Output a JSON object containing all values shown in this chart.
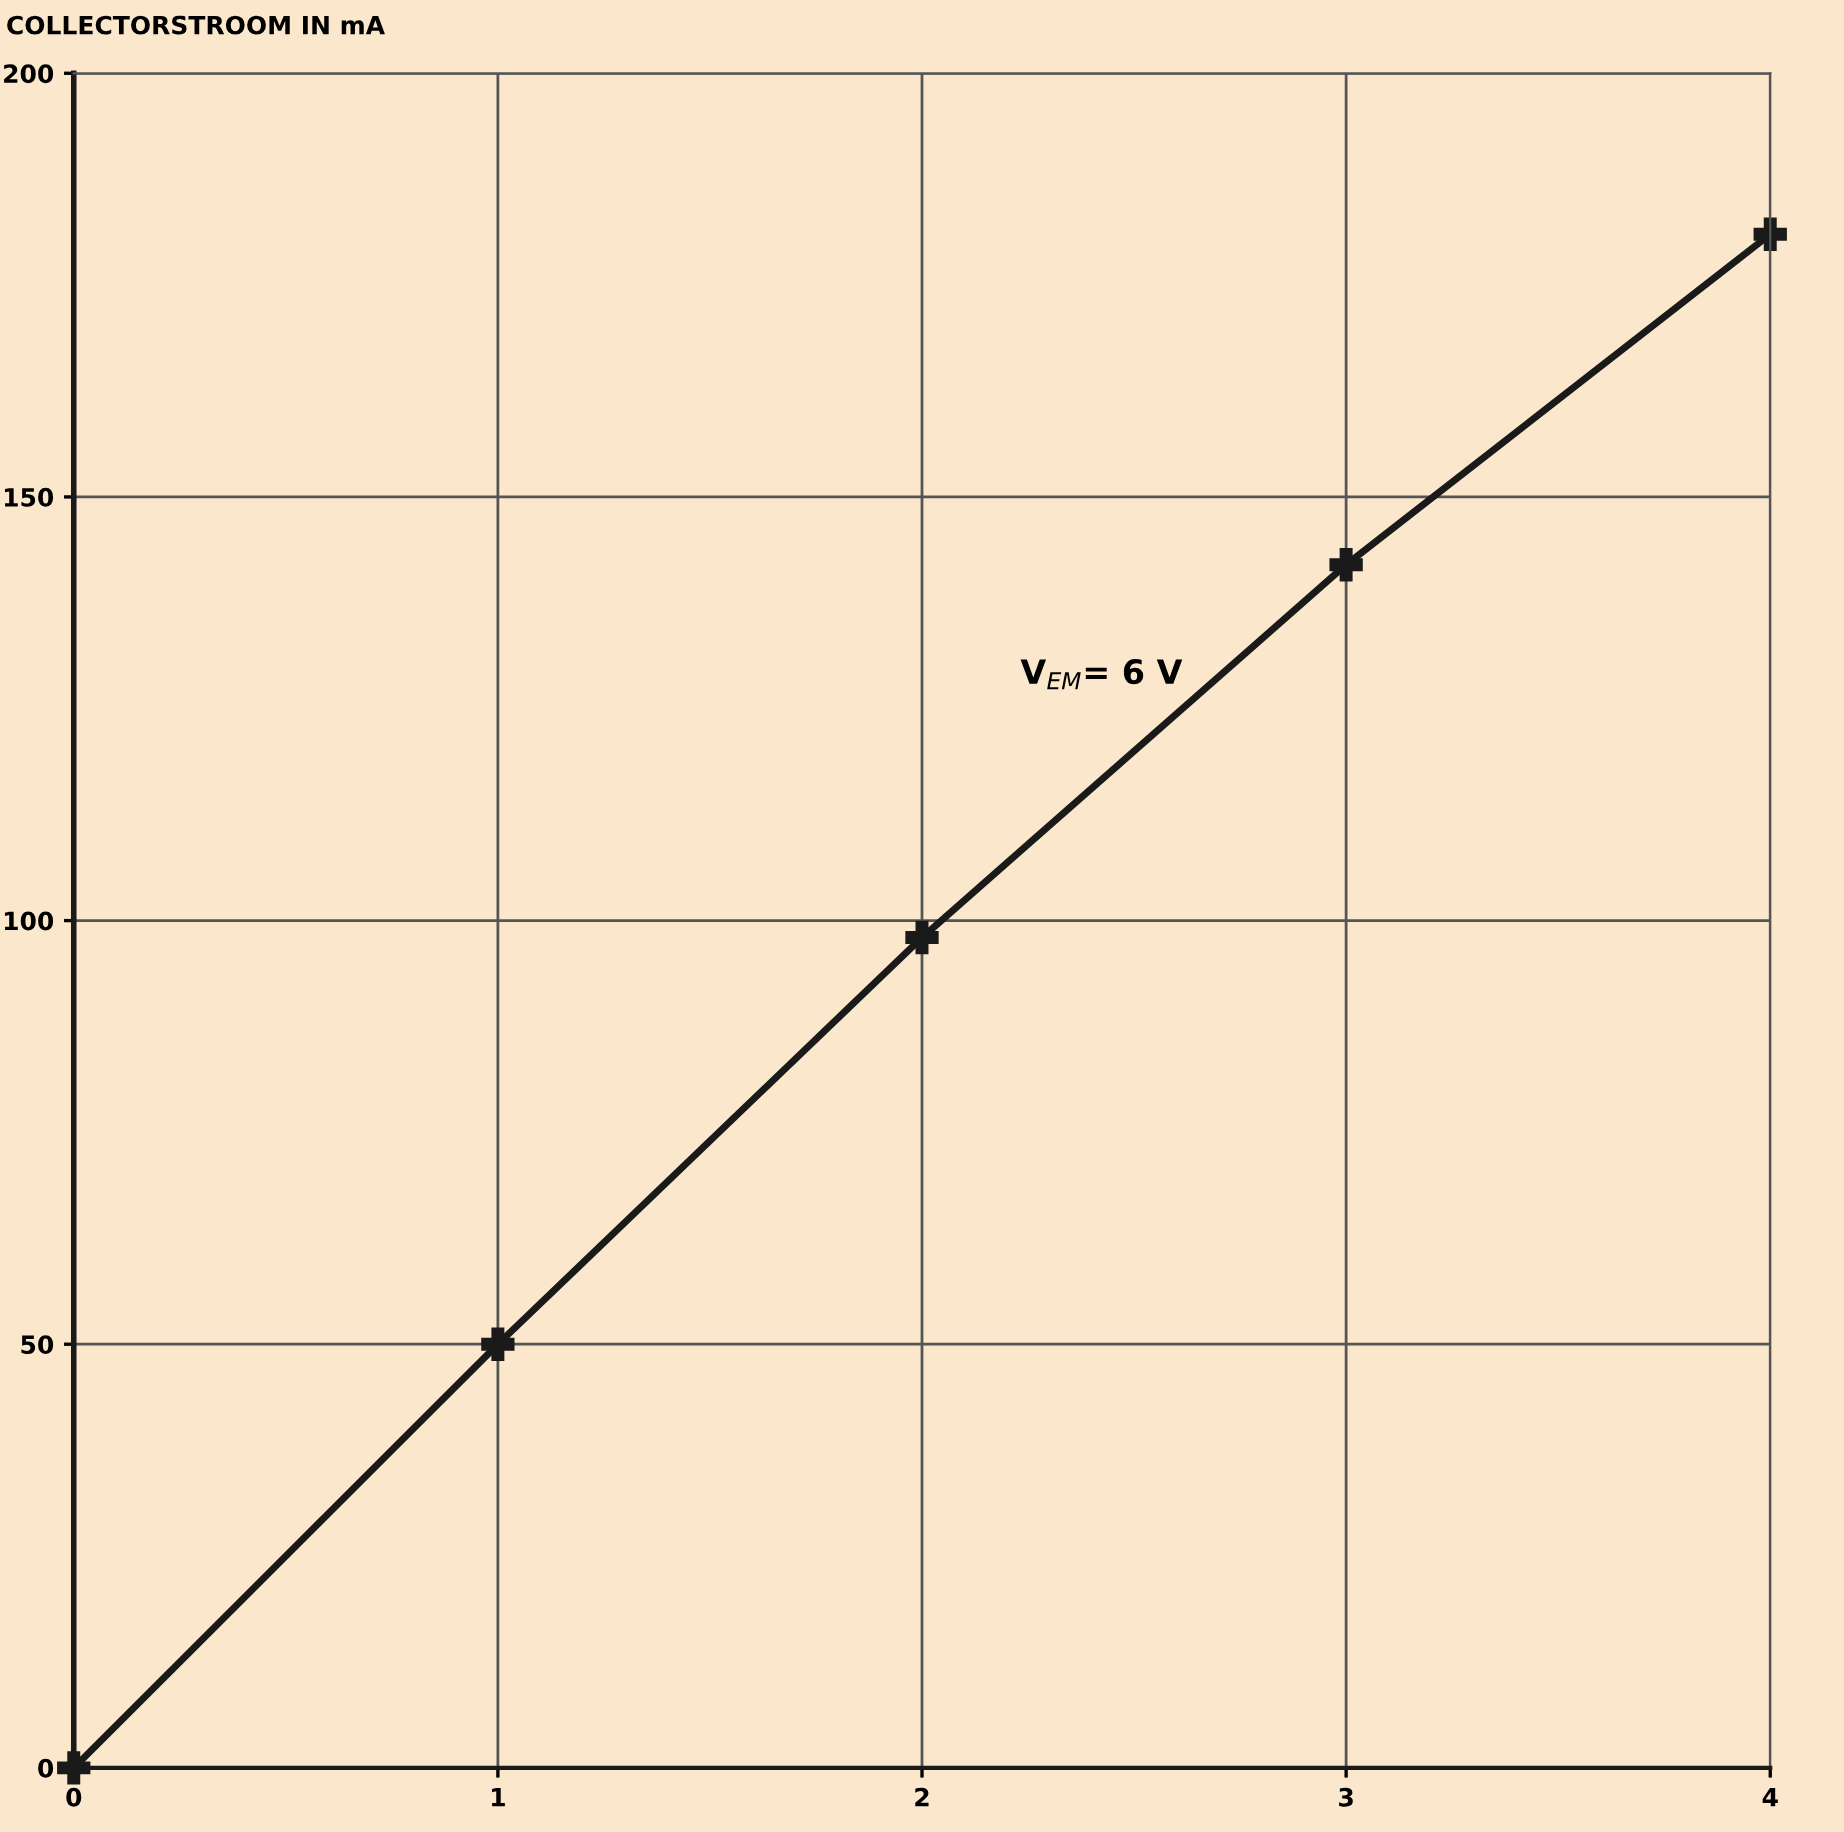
{
  "chart_data": {
    "type": "line",
    "ylabel": "COLLECTORSTROOM IN mA",
    "x": [
      0,
      1,
      2,
      3,
      4
    ],
    "series": [
      {
        "color": "#1a1a1a",
        "values": [
          0,
          50,
          98,
          142,
          181
        ]
      }
    ],
    "xlim": [
      0,
      4
    ],
    "xticks": [
      0,
      1,
      2,
      3,
      4
    ],
    "ylim": [
      0,
      200
    ],
    "yticks": [
      0,
      50,
      100,
      150,
      200
    ],
    "grid": true,
    "marker": "cross",
    "line_style": "solid",
    "annotations": [
      "V$_{EM}$= 6 V"
    ]
  }
}
